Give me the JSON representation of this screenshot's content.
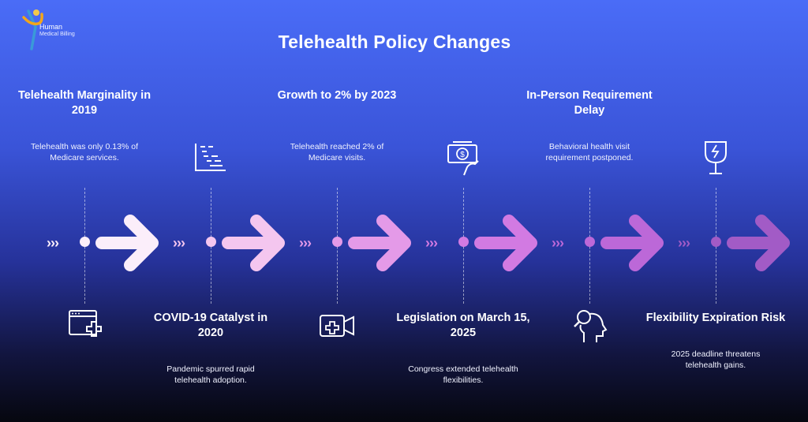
{
  "brand": {
    "line1": "Human",
    "line2": "Medical Billing"
  },
  "title": "Telehealth Policy Changes",
  "stages": [
    {
      "position": "top",
      "heading": "Telehealth Marginality in 2019",
      "desc": "Telehealth was only 0.13% of Medicare services.",
      "icon": "browser-medical-icon",
      "color": "#fbeefa"
    },
    {
      "position": "bottom",
      "heading": "COVID-19 Catalyst in 2020",
      "desc": "Pandemic spurred rapid telehealth adoption.",
      "icon": "chart-document-icon",
      "color": "#f4c6ef"
    },
    {
      "position": "top",
      "heading": "Growth to 2% by 2023",
      "desc": "Telehealth reached 2% of Medicare visits.",
      "icon": "video-medical-icon",
      "color": "#e49ae8"
    },
    {
      "position": "bottom",
      "heading": "Legislation on March 15, 2025",
      "desc": "Congress extended telehealth flexibilities.",
      "icon": "money-hand-icon",
      "color": "#d27ae2"
    },
    {
      "position": "top",
      "heading": "In-Person Requirement Delay",
      "desc": "Behavioral health visit requirement postponed.",
      "icon": "head-search-icon",
      "color": "#bc68d8"
    },
    {
      "position": "bottom",
      "heading": "Flexibility Expiration Risk",
      "desc": "2025 deadline threatens telehealth gains.",
      "icon": "broken-glass-icon",
      "color": "#a25bc6"
    }
  ]
}
